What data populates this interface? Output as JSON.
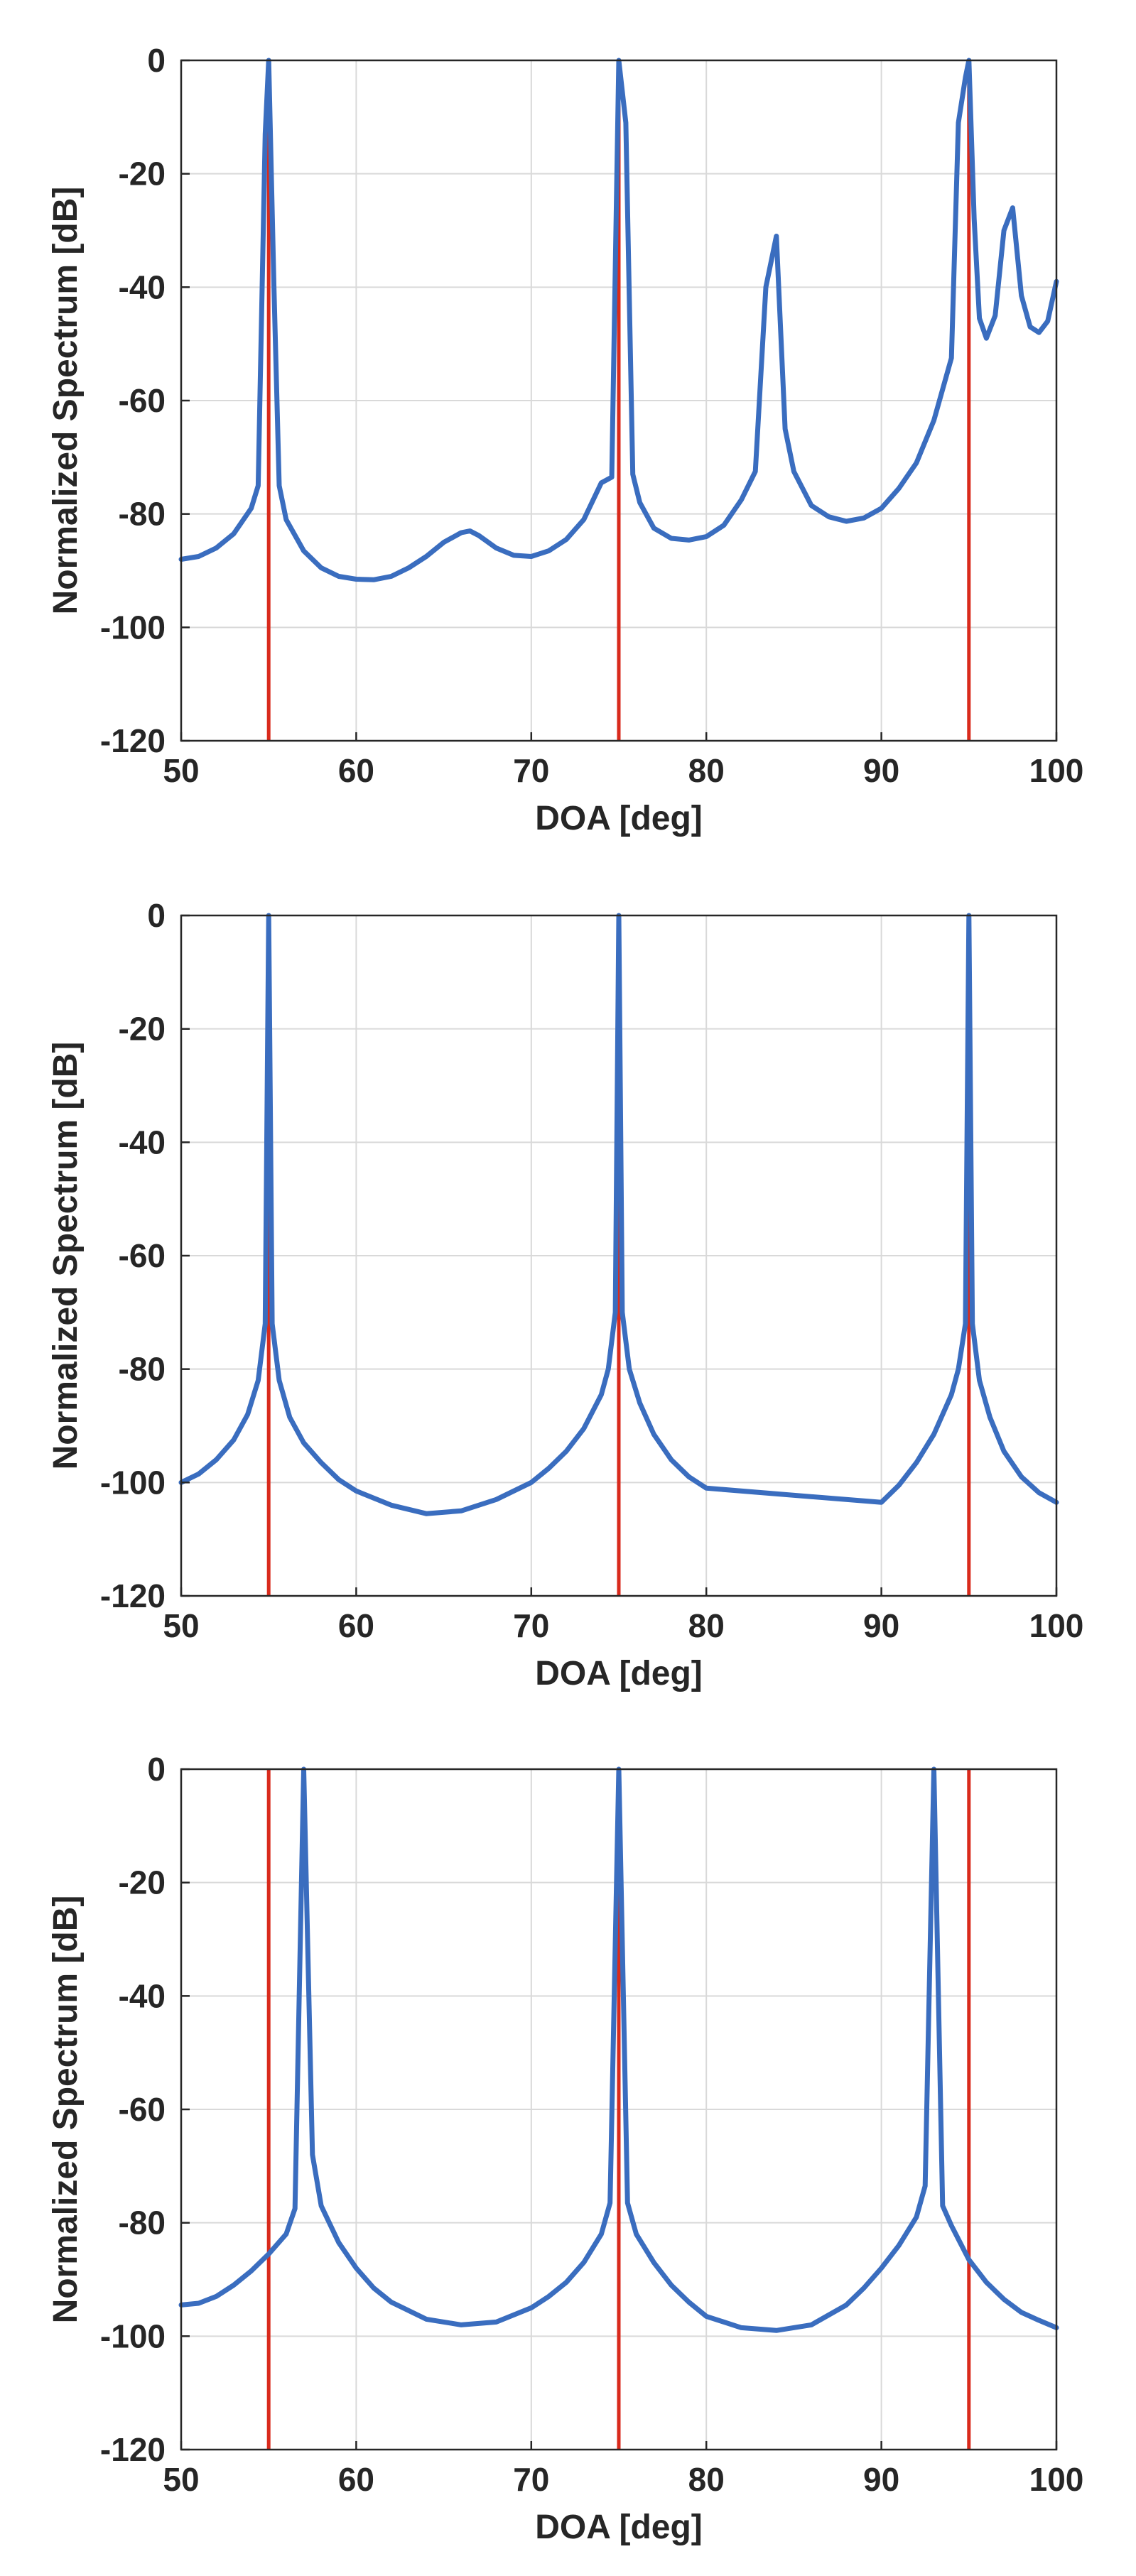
{
  "colors": {
    "spectrum": "#3a6dbf",
    "true_doa": "#d92a1c",
    "grid": "#d9d9d9",
    "axis": "#262626"
  },
  "chart_data": [
    {
      "type": "line",
      "title": "",
      "xlabel": "DOA [deg]",
      "ylabel": "Normalized Spectrum [dB]",
      "xlim": [
        50,
        100
      ],
      "ylim": [
        -120,
        0
      ],
      "xticks": [
        50,
        60,
        70,
        80,
        90,
        100
      ],
      "yticks": [
        0,
        -20,
        -40,
        -60,
        -80,
        -100,
        -120
      ],
      "xtick_labels": [
        "50",
        "60",
        "70",
        "80",
        "90",
        "100"
      ],
      "ytick_labels": [
        "0",
        "-20",
        "-40",
        "-60",
        "-80",
        "-100",
        "-120"
      ],
      "grid": true,
      "true_doas": [
        55,
        75,
        95
      ],
      "series": [
        {
          "name": "spectrum",
          "x": [
            50,
            51,
            52,
            53,
            54,
            54.4,
            54.8,
            55,
            55.3,
            55.6,
            56,
            57,
            58,
            59,
            60,
            61,
            62,
            63,
            64,
            65,
            66,
            66.5,
            67,
            68,
            69,
            70,
            71,
            72,
            73,
            74,
            74.6,
            75,
            75.4,
            75.8,
            76.2,
            77,
            78,
            79,
            80,
            81,
            82,
            82.8,
            83.4,
            84,
            84.5,
            85,
            86,
            87,
            88,
            89,
            90,
            91,
            92,
            93,
            94,
            94.4,
            94.8,
            95,
            95.3,
            95.6,
            96,
            96.5,
            97,
            97.5,
            98,
            98.5,
            99,
            99.5,
            100
          ],
          "values": [
            -88,
            -87.5,
            -86,
            -83.5,
            -79,
            -75,
            -13,
            0,
            -40,
            -75,
            -81,
            -86.5,
            -89.5,
            -91,
            -91.5,
            -91.6,
            -91,
            -89.5,
            -87.5,
            -85,
            -83.3,
            -83,
            -83.8,
            -86,
            -87.3,
            -87.5,
            -86.5,
            -84.5,
            -81,
            -74.5,
            -73.5,
            0,
            -11,
            -73,
            -78,
            -82.5,
            -84.3,
            -84.6,
            -84,
            -82,
            -77.5,
            -72.5,
            -40,
            -31,
            -65,
            -72.5,
            -78.5,
            -80.5,
            -81.3,
            -80.7,
            -79,
            -75.5,
            -71,
            -63.5,
            -52.5,
            -11,
            -3,
            0,
            -28,
            -45.5,
            -49,
            -45,
            -30,
            -26,
            -41.5,
            -47,
            -48,
            -46,
            -39
          ]
        }
      ]
    },
    {
      "type": "line",
      "title": "",
      "xlabel": "DOA [deg]",
      "ylabel": "Normalized Spectrum [dB]",
      "xlim": [
        50,
        100
      ],
      "ylim": [
        -120,
        0
      ],
      "xticks": [
        50,
        60,
        70,
        80,
        90,
        100
      ],
      "yticks": [
        0,
        -20,
        -40,
        -60,
        -80,
        -100,
        -120
      ],
      "xtick_labels": [
        "50",
        "60",
        "70",
        "80",
        "90",
        "100"
      ],
      "ytick_labels": [
        "0",
        "-20",
        "-40",
        "-60",
        "-80",
        "-100",
        "-120"
      ],
      "grid": true,
      "true_doas": [
        55,
        75,
        95
      ],
      "series": [
        {
          "name": "spectrum",
          "x": [
            50,
            51,
            52,
            53,
            53.8,
            54.4,
            54.8,
            55,
            55.2,
            55.6,
            56.2,
            57,
            58,
            59,
            60,
            62,
            64,
            66,
            68,
            70,
            71,
            72,
            73,
            74,
            74.4,
            74.8,
            75,
            75.2,
            75.6,
            76.2,
            77,
            78,
            79,
            80,
            90,
            91,
            92,
            93,
            94,
            94.4,
            94.8,
            95,
            95.2,
            95.6,
            96.2,
            97,
            98,
            99,
            100
          ],
          "values": [
            -100,
            -98.5,
            -96,
            -92.5,
            -88,
            -82,
            -72,
            0,
            -72,
            -82,
            -88.5,
            -93,
            -96.5,
            -99.5,
            -101.5,
            -104,
            -105.5,
            -105,
            -103,
            -100,
            -97.5,
            -94.5,
            -90.5,
            -84.5,
            -80,
            -70,
            0,
            -70,
            -80,
            -86,
            -91.5,
            -96,
            -99,
            -101,
            -103.5,
            -100.5,
            -96.5,
            -91.5,
            -84.5,
            -80,
            -72,
            0,
            -72,
            -82,
            -88.5,
            -94.5,
            -99,
            -101.8,
            -103.5
          ]
        }
      ]
    },
    {
      "type": "line",
      "title": "",
      "xlabel": "DOA [deg]",
      "ylabel": "Normalized Spectrum [dB]",
      "xlim": [
        50,
        100
      ],
      "ylim": [
        -120,
        0
      ],
      "xticks": [
        50,
        60,
        70,
        80,
        90,
        100
      ],
      "yticks": [
        0,
        -20,
        -40,
        -60,
        -80,
        -100,
        -120
      ],
      "xtick_labels": [
        "50",
        "60",
        "70",
        "80",
        "90",
        "100"
      ],
      "ytick_labels": [
        "0",
        "-20",
        "-40",
        "-60",
        "-80",
        "-100",
        "-120"
      ],
      "grid": true,
      "true_doas": [
        55,
        75,
        95
      ],
      "series": [
        {
          "name": "spectrum",
          "x": [
            50,
            51,
            52,
            53,
            54,
            55,
            56,
            56.5,
            57,
            57.5,
            58,
            59,
            60,
            61,
            62,
            64,
            66,
            68,
            70,
            71,
            72,
            73,
            74,
            74.5,
            75,
            75.5,
            76,
            77,
            78,
            79,
            80,
            82,
            84,
            86,
            88,
            89,
            90,
            91,
            92,
            92.5,
            93,
            93.5,
            94,
            95,
            96,
            97,
            98,
            99,
            100
          ],
          "values": [
            -94.5,
            -94.2,
            -93,
            -91,
            -88.5,
            -85.5,
            -82,
            -77.5,
            0,
            -68,
            -77,
            -83.5,
            -88,
            -91.5,
            -94,
            -97,
            -98,
            -97.5,
            -95,
            -93,
            -90.5,
            -87,
            -82,
            -76.5,
            0,
            -76.5,
            -82,
            -87,
            -91,
            -94,
            -96.5,
            -98.5,
            -99,
            -98,
            -94.5,
            -91.5,
            -88,
            -84,
            -79,
            -73.5,
            0,
            -77,
            -80.5,
            -86.5,
            -90.5,
            -93.5,
            -95.8,
            -97.2,
            -98.5
          ]
        }
      ]
    }
  ]
}
